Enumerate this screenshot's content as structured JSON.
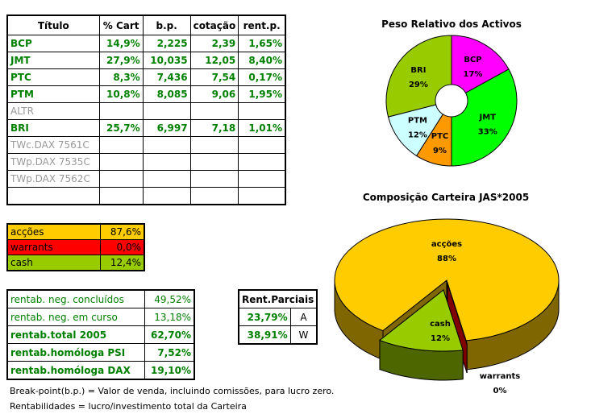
{
  "holdings": {
    "headers": [
      "Título",
      "% Cart",
      "b.p.",
      "cotação",
      "rent.p."
    ],
    "rows": [
      {
        "titulo": "BCP",
        "cart": "14,9%",
        "bp": "2,225",
        "cotacao": "2,39",
        "rent": "1,65%",
        "active": true
      },
      {
        "titulo": "JMT",
        "cart": "27,9%",
        "bp": "10,035",
        "cotacao": "12,05",
        "rent": "8,40%",
        "active": true
      },
      {
        "titulo": "PTC",
        "cart": "8,3%",
        "bp": "7,436",
        "cotacao": "7,54",
        "rent": "0,17%",
        "active": true
      },
      {
        "titulo": "PTM",
        "cart": "10,8%",
        "bp": "8,085",
        "cotacao": "9,06",
        "rent": "1,95%",
        "active": true
      },
      {
        "titulo": "ALTR",
        "cart": "",
        "bp": "",
        "cotacao": "",
        "rent": "",
        "active": false
      },
      {
        "titulo": "BRI",
        "cart": "25,7%",
        "bp": "6,997",
        "cotacao": "7,18",
        "rent": "1,01%",
        "active": true
      },
      {
        "titulo": "TWc.DAX 7561C",
        "cart": "",
        "bp": "",
        "cotacao": "",
        "rent": "",
        "active": false
      },
      {
        "titulo": "TWp.DAX 7535C",
        "cart": "",
        "bp": "",
        "cotacao": "",
        "rent": "",
        "active": false
      },
      {
        "titulo": "TWp.DAX 7562C",
        "cart": "",
        "bp": "",
        "cotacao": "",
        "rent": "",
        "active": false
      },
      {
        "titulo": "",
        "cart": "",
        "bp": "",
        "cotacao": "",
        "rent": "",
        "active": false
      }
    ]
  },
  "allocation": [
    {
      "label": "acções",
      "value": "87,6%",
      "color": "#ffcc00"
    },
    {
      "label": "warrants",
      "value": "0,0%",
      "color": "#ff0000"
    },
    {
      "label": "cash",
      "value": "12,4%",
      "color": "#99cc00"
    }
  ],
  "stats": [
    {
      "label": "rentab. neg. concluídos",
      "value": "49,52%",
      "bold": false
    },
    {
      "label": "rentab. neg. em curso",
      "value": "13,18%",
      "bold": false
    },
    {
      "label": "rentab.total 2005",
      "value": "62,70%",
      "bold": true
    },
    {
      "label": "rentab.homóloga PSI",
      "value": "7,52%",
      "bold": true
    },
    {
      "label": "rentab.homóloga DAX",
      "value": "19,10%",
      "bold": true
    }
  ],
  "rent_parciais": {
    "title": "Rent.Parciais",
    "rows": [
      {
        "value": "23,79%",
        "code": "A"
      },
      {
        "value": "38,91%",
        "code": "W"
      }
    ]
  },
  "notes": [
    "Break-point(b.p.) = Valor de venda, incluindo comissões, para lucro zero.",
    "Rentabilidades = lucro/investimento total da Carteira"
  ],
  "chart_data": [
    {
      "type": "pie",
      "variant": "doughnut",
      "title": "Peso Relativo dos Activos",
      "slices": [
        {
          "name": "BCP",
          "value": 17,
          "label": "17%",
          "color": "#ff00ff"
        },
        {
          "name": "JMT",
          "value": 33,
          "label": "33%",
          "color": "#00ff00"
        },
        {
          "name": "PTC",
          "value": 9,
          "label": "9%",
          "color": "#ff9900"
        },
        {
          "name": "PTM",
          "value": 12,
          "label": "12%",
          "color": "#ccffff"
        },
        {
          "name": "BRI",
          "value": 29,
          "label": "29%",
          "color": "#99cc00"
        }
      ]
    },
    {
      "type": "pie",
      "variant": "3d-exploded",
      "title": "Composição Carteira JAS*2005",
      "slices": [
        {
          "name": "acções",
          "value": 87.6,
          "label": "88%",
          "color": "#ffcc00",
          "side": "#806600"
        },
        {
          "name": "warrants",
          "value": 0.0,
          "label": "0%",
          "color": "#ff0000",
          "side": "#800000"
        },
        {
          "name": "cash",
          "value": 12.4,
          "label": "12%",
          "color": "#99cc00",
          "side": "#4d6600"
        }
      ]
    }
  ]
}
